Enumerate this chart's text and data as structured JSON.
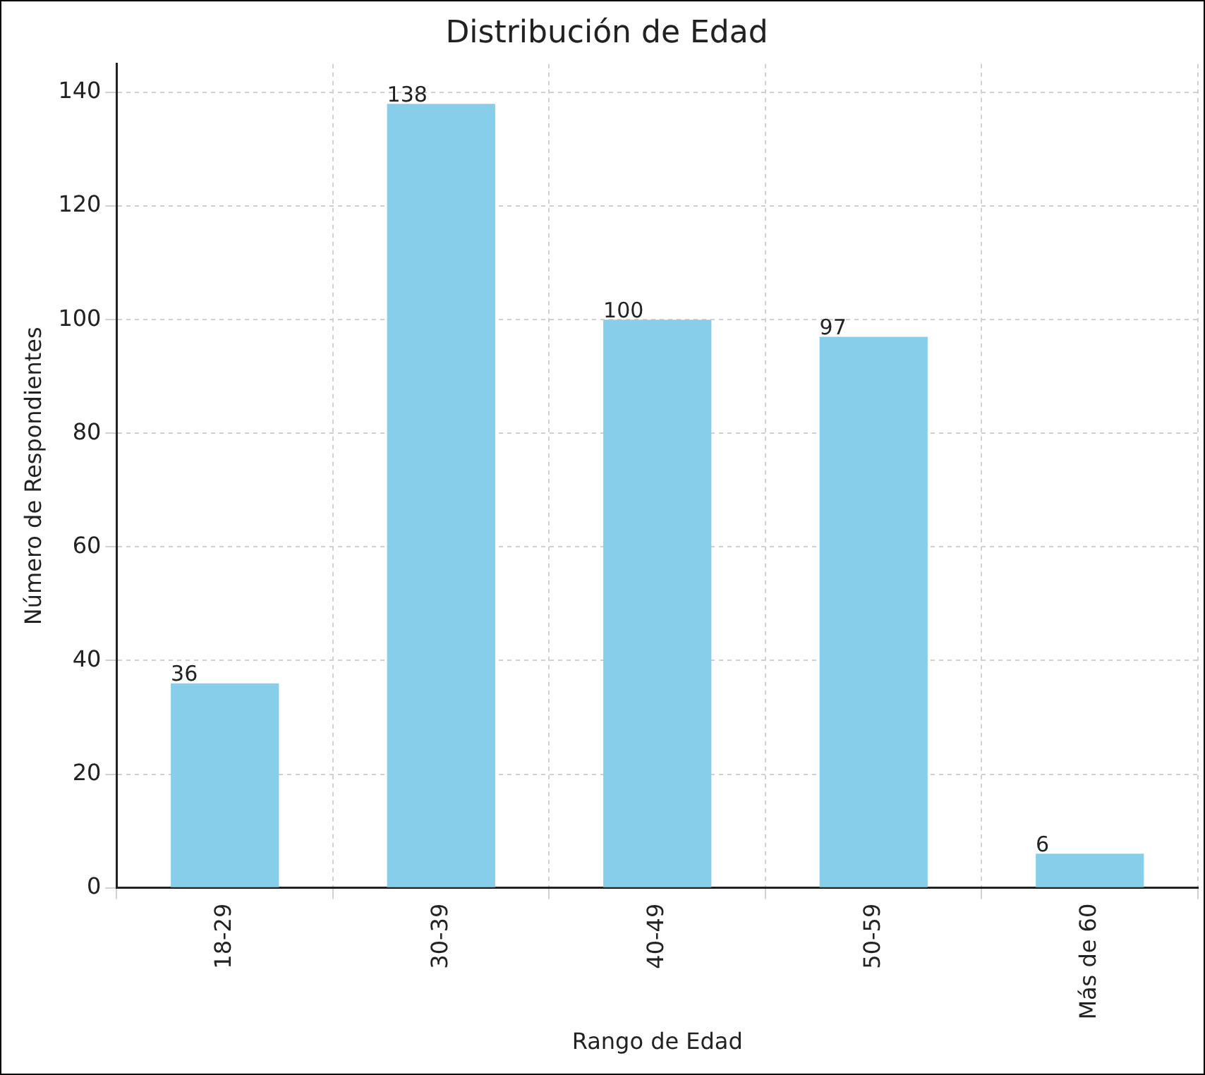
{
  "chart_data": {
    "type": "bar",
    "title": "Distribución de Edad",
    "xlabel": "Rango de Edad",
    "ylabel": "Número de Respondientes",
    "categories": [
      "18-29",
      "30-39",
      "40-49",
      "50-59",
      "Más de 60"
    ],
    "values": [
      36,
      138,
      100,
      97,
      6
    ],
    "color": "#87ceeb",
    "ylim": [
      0,
      145
    ],
    "yticks": [
      0,
      20,
      40,
      60,
      80,
      100,
      120,
      140
    ],
    "grid": true,
    "data_labels": true,
    "legend": false
  }
}
